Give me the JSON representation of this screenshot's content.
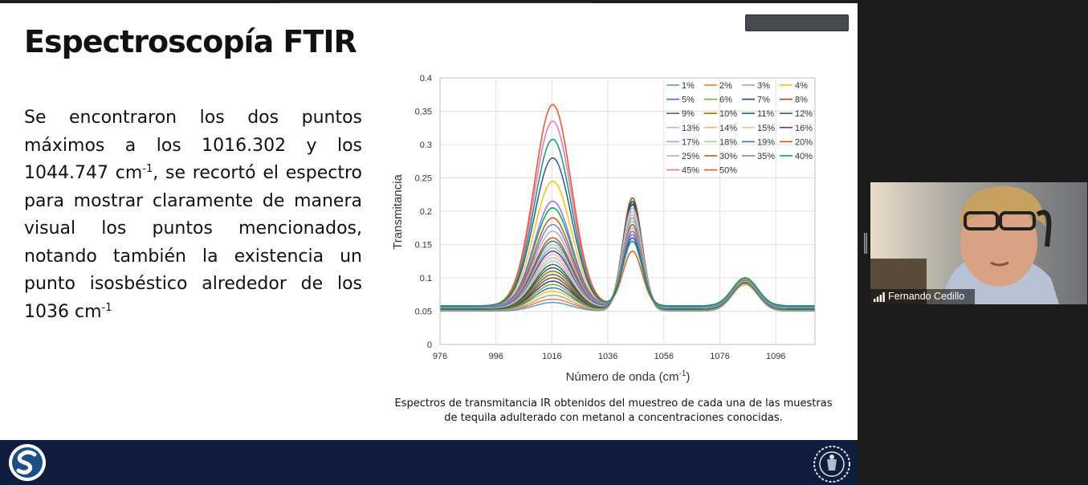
{
  "slide": {
    "title": "Espectroscopía FTIR",
    "body": {
      "part1": "Se encontraron los dos puntos máximos a los 1016.302 y los 1044.747 cm",
      "sup1": "-1",
      "part2": ", se recortó el espectro para mostrar claramente de manera visual los puntos mencionados, notando también la existencia un punto isosbéstico alrededor de los 1036 cm",
      "sup2": "-1"
    },
    "caption": "Espectros de transmitancia IR obtenidos del muestreo de cada una de las muestras de tequila adulterado con metanol a concentraciones conocidas."
  },
  "chart_data": {
    "type": "line",
    "ylabel": "Transmitancia",
    "xlabel": "Número de onda (cm",
    "xlabel_sup": "-1",
    "xlabel_end": ")",
    "xlim": [
      976,
      1110
    ],
    "ylim": [
      0,
      0.4
    ],
    "x_ticks": [
      976,
      996,
      1016,
      1036,
      1056,
      1076,
      1096
    ],
    "y_ticks": [
      "0",
      "0.05",
      "0.1",
      "0.15",
      "0.2",
      "0.25",
      "0.3",
      "0.35",
      "0.4"
    ],
    "legend_position": "top-right",
    "peaks": [
      1016.302,
      1044.747
    ],
    "isosbestic_point": 1036,
    "series": [
      {
        "name": "1%",
        "color": "#5b9bd5",
        "peak1": 0.063,
        "peak2": 0.2,
        "peak3": 0.09,
        "base": 0.05
      },
      {
        "name": "2%",
        "color": "#ed7d31",
        "peak1": 0.068,
        "peak2": 0.195,
        "peak3": 0.092,
        "base": 0.051
      },
      {
        "name": "3%",
        "color": "#a5a5a5",
        "peak1": 0.074,
        "peak2": 0.2,
        "peak3": 0.09,
        "base": 0.051
      },
      {
        "name": "4%",
        "color": "#ffc000",
        "peak1": 0.08,
        "peak2": 0.205,
        "peak3": 0.091,
        "base": 0.052
      },
      {
        "name": "5%",
        "color": "#4472c4",
        "peak1": 0.085,
        "peak2": 0.21,
        "peak3": 0.092,
        "base": 0.052
      },
      {
        "name": "6%",
        "color": "#70ad47",
        "peak1": 0.09,
        "peak2": 0.212,
        "peak3": 0.092,
        "base": 0.052
      },
      {
        "name": "7%",
        "color": "#264478",
        "peak1": 0.095,
        "peak2": 0.215,
        "peak3": 0.093,
        "base": 0.053
      },
      {
        "name": "8%",
        "color": "#9e480e",
        "peak1": 0.1,
        "peak2": 0.22,
        "peak3": 0.094,
        "base": 0.053
      },
      {
        "name": "9%",
        "color": "#636363",
        "peak1": 0.105,
        "peak2": 0.21,
        "peak3": 0.093,
        "base": 0.053
      },
      {
        "name": "10%",
        "color": "#997300",
        "peak1": 0.11,
        "peak2": 0.205,
        "peak3": 0.094,
        "base": 0.054
      },
      {
        "name": "11%",
        "color": "#255e91",
        "peak1": 0.115,
        "peak2": 0.21,
        "peak3": 0.094,
        "base": 0.054
      },
      {
        "name": "12%",
        "color": "#43682b",
        "peak1": 0.12,
        "peak2": 0.2,
        "peak3": 0.095,
        "base": 0.054
      },
      {
        "name": "13%",
        "color": "#9dc3e6",
        "peak1": 0.125,
        "peak2": 0.205,
        "peak3": 0.095,
        "base": 0.055
      },
      {
        "name": "14%",
        "color": "#f4b183",
        "peak1": 0.13,
        "peak2": 0.195,
        "peak3": 0.095,
        "base": 0.055
      },
      {
        "name": "15%",
        "color": "#c9c9c9",
        "peak1": 0.135,
        "peak2": 0.2,
        "peak3": 0.096,
        "base": 0.055
      },
      {
        "name": "16%",
        "color": "#7030a0",
        "peak1": 0.14,
        "peak2": 0.19,
        "peak3": 0.096,
        "base": 0.056
      },
      {
        "name": "17%",
        "color": "#8faadc",
        "peak1": 0.145,
        "peak2": 0.19,
        "peak3": 0.096,
        "base": 0.056
      },
      {
        "name": "18%",
        "color": "#a9d18e",
        "peak1": 0.15,
        "peak2": 0.185,
        "peak3": 0.097,
        "base": 0.056
      },
      {
        "name": "19%",
        "color": "#2e75b6",
        "peak1": 0.155,
        "peak2": 0.18,
        "peak3": 0.097,
        "base": 0.056
      },
      {
        "name": "20%",
        "color": "#c55a11",
        "peak1": 0.16,
        "peak2": 0.18,
        "peak3": 0.097,
        "base": 0.057
      },
      {
        "name": "25%",
        "color": "#b4a7d6",
        "peak1": 0.17,
        "peak2": 0.175,
        "peak3": 0.098,
        "base": 0.057
      },
      {
        "name": "30%",
        "color": "#c55a11",
        "peak1": 0.19,
        "peak2": 0.17,
        "peak3": 0.098,
        "base": 0.057
      },
      {
        "name": "35%",
        "color": "#7f7fbf",
        "peak1": 0.18,
        "peak2": 0.17,
        "peak3": 0.098,
        "base": 0.057
      },
      {
        "name": "40%",
        "color": "#00b050",
        "peak1": 0.205,
        "peak2": 0.165,
        "peak3": 0.099,
        "base": 0.058
      },
      {
        "name": "45%",
        "color": "#ff66cc",
        "peak1": 0.335,
        "peak2": 0.155,
        "peak3": 0.099,
        "base": 0.058
      },
      {
        "name": "50%",
        "color": "#f4511e",
        "peak1": 0.36,
        "peak2": 0.14,
        "peak3": 0.1,
        "base": 0.058
      },
      {
        "name": "",
        "color": "#9966ff",
        "peak1": 0.215,
        "peak2": 0.165,
        "peak3": 0.099,
        "base": 0.057
      },
      {
        "name": "",
        "color": "#ffc000",
        "peak1": 0.245,
        "peak2": 0.16,
        "peak3": 0.099,
        "base": 0.058
      },
      {
        "name": "",
        "color": "#2f5597",
        "peak1": 0.28,
        "peak2": 0.16,
        "peak3": 0.1,
        "base": 0.058
      },
      {
        "name": "",
        "color": "#00a36c",
        "peak1": 0.308,
        "peak2": 0.155,
        "peak3": 0.1,
        "base": 0.058
      }
    ]
  },
  "video": {
    "participant_name": "Fernando Cedillo"
  },
  "colors": {
    "footer": "#0f1e3f",
    "slide_bg": "#ffffff",
    "app_bg": "#1c1c1c"
  },
  "icons": {
    "footer_left": "s-logo-icon",
    "footer_right": "university-seal-icon",
    "name_bar": "signal-bars-icon"
  }
}
